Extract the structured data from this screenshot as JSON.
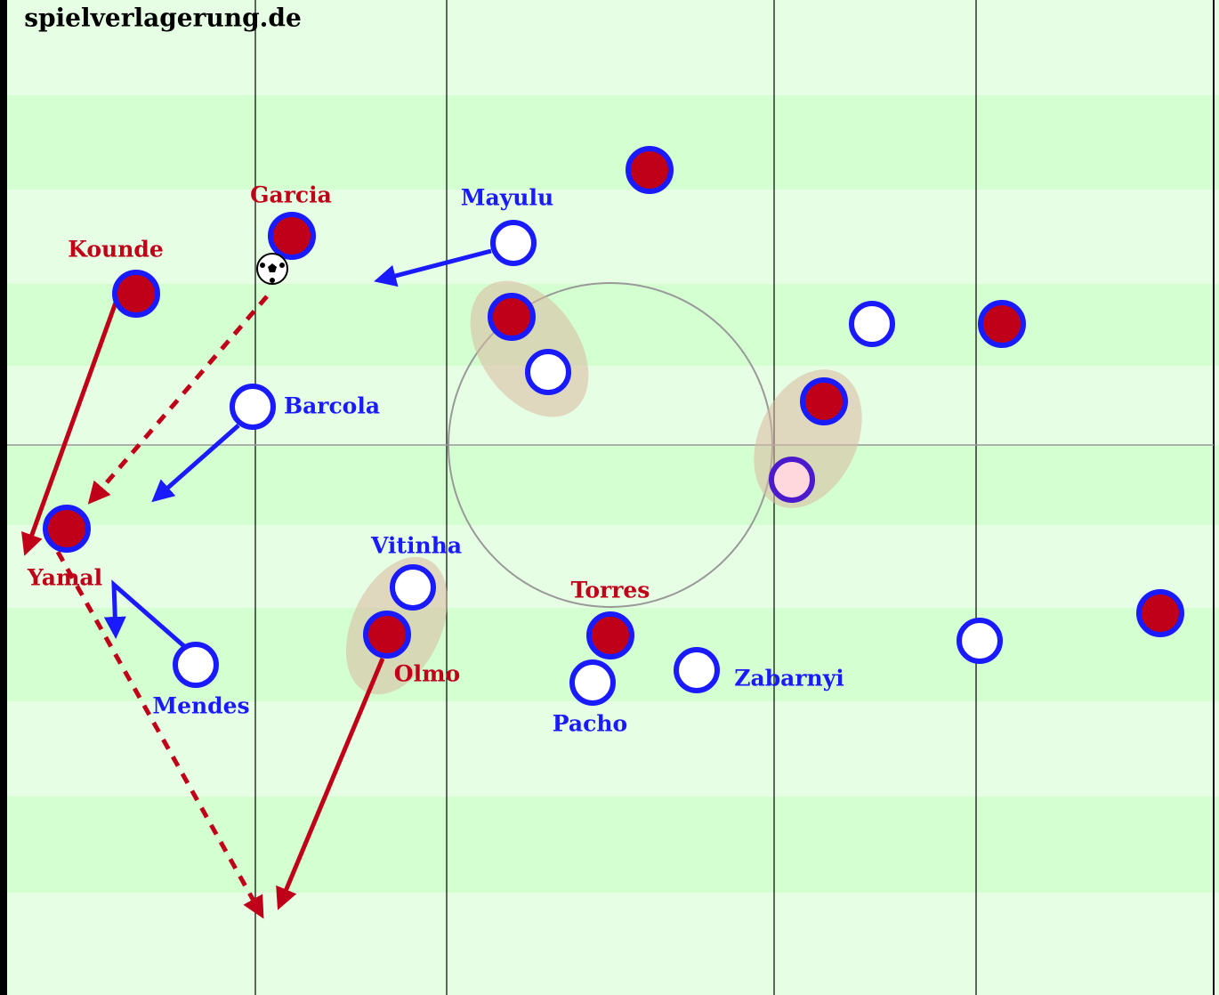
{
  "watermark": "spielverlagerung.de",
  "players": [
    {
      "label": "Garcia"
    },
    {
      "label": "Kounde"
    },
    {
      "label": "Mayulu"
    },
    {
      "label": "Barcola"
    },
    {
      "label": "Yamal"
    },
    {
      "label": "Vitinha"
    },
    {
      "label": "Torres"
    },
    {
      "label": "Olmo"
    },
    {
      "label": "Mendes"
    },
    {
      "label": "Zabarnyi"
    },
    {
      "label": "Pacho"
    }
  ]
}
